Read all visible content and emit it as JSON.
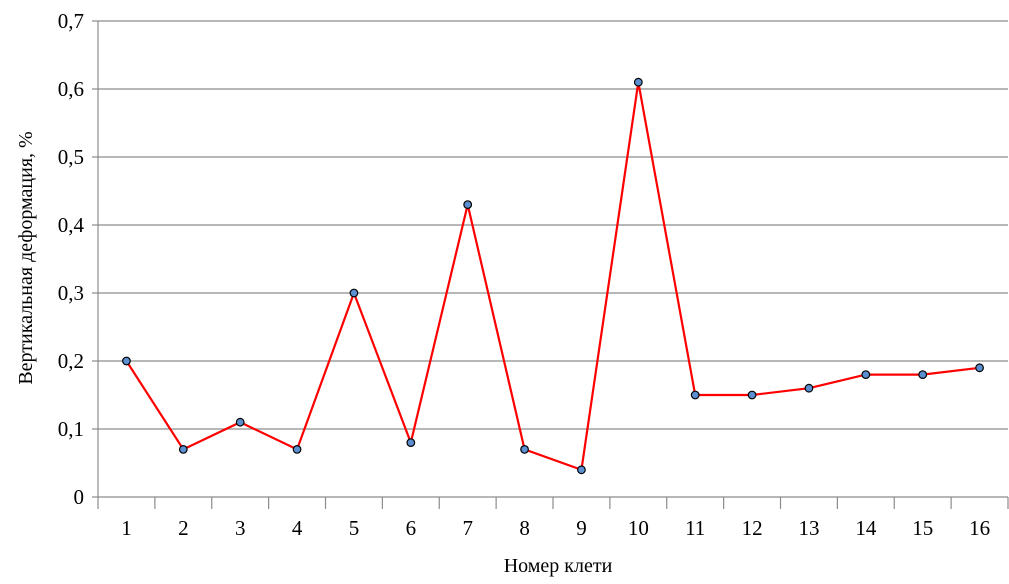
{
  "chart_data": {
    "type": "line",
    "title": "",
    "xlabel": "Номер клети",
    "ylabel": "Вертикальная деформация, %",
    "categories": [
      "1",
      "2",
      "3",
      "4",
      "5",
      "6",
      "7",
      "8",
      "9",
      "10",
      "11",
      "12",
      "13",
      "14",
      "15",
      "16"
    ],
    "series": [
      {
        "values": [
          0.2,
          0.07,
          0.11,
          0.07,
          0.3,
          0.08,
          0.43,
          0.07,
          0.04,
          0.61,
          0.15,
          0.15,
          0.16,
          0.18,
          0.18,
          0.19
        ]
      }
    ],
    "ylim": [
      0,
      0.7
    ],
    "y_ticks": [
      "0",
      "0,1",
      "0,2",
      "0,3",
      "0,4",
      "0,5",
      "0,6",
      "0,7"
    ],
    "grid": "horizontal",
    "legend": "none",
    "colors": {
      "line": "#ff0000",
      "marker_fill": "#5b8fd0",
      "marker_stroke": "#000000",
      "grid": "#8c8c8c",
      "axis": "#8c8c8c"
    }
  }
}
